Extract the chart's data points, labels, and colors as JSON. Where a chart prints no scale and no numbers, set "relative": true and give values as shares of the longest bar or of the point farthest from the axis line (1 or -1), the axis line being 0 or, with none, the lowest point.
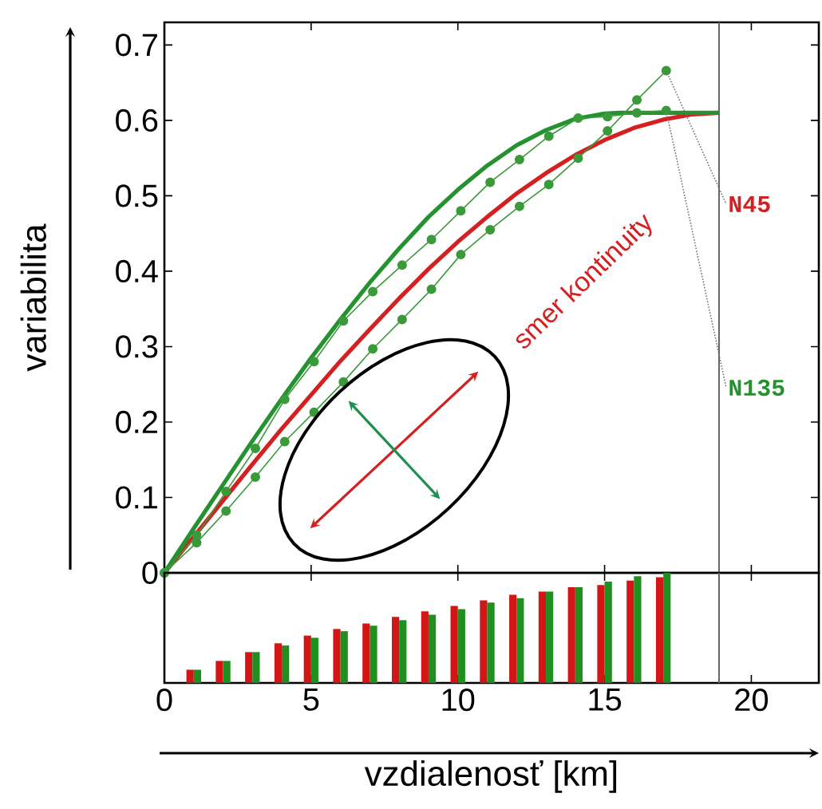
{
  "chart_data": [
    {
      "type": "line",
      "ylabel": "variabilita",
      "xlim": [
        0,
        22.3
      ],
      "ylim": [
        0,
        0.73
      ],
      "xticks": [
        0,
        5,
        10,
        15,
        20
      ],
      "yticks": [
        0,
        0.1,
        0.2,
        0.3,
        0.4,
        0.5,
        0.6,
        0.7
      ],
      "tick_labels": "y",
      "ref_lines": [
        {
          "axis": "x",
          "value": 18.9
        }
      ],
      "annotations": [
        "smer kontinuity"
      ],
      "series": [
        {
          "name": "N45",
          "color": "#d42020",
          "marker": "none",
          "x": [
            0,
            1,
            2,
            3,
            4,
            5,
            6,
            7,
            8,
            9,
            10,
            11,
            12,
            13,
            14,
            15,
            16,
            17,
            18,
            18.9
          ],
          "values": [
            0,
            0.048,
            0.096,
            0.144,
            0.191,
            0.236,
            0.281,
            0.323,
            0.364,
            0.403,
            0.439,
            0.472,
            0.503,
            0.53,
            0.554,
            0.574,
            0.59,
            0.601,
            0.608,
            0.61
          ]
        },
        {
          "name": "N135",
          "color": "#23922f",
          "marker": "none",
          "x": [
            0,
            1,
            2,
            3,
            4,
            5,
            6,
            7,
            8,
            9,
            10,
            11,
            12,
            13,
            14,
            15,
            15.5,
            18.9
          ],
          "values": [
            0,
            0.059,
            0.117,
            0.175,
            0.231,
            0.285,
            0.336,
            0.385,
            0.43,
            0.472,
            0.508,
            0.54,
            0.567,
            0.587,
            0.602,
            0.609,
            0.61,
            0.61
          ]
        },
        {
          "color": "#3a9a3a",
          "marker": "circle",
          "x": [
            0,
            1.1,
            2.1,
            3.1,
            4.1,
            5.1,
            6.1,
            7.1,
            8.1,
            9.1,
            10.1,
            11.1,
            12.1,
            13.1,
            14.1,
            15.1,
            16.1,
            17.1
          ],
          "values": [
            0,
            0.04,
            0.082,
            0.127,
            0.174,
            0.213,
            0.253,
            0.297,
            0.336,
            0.376,
            0.422,
            0.455,
            0.486,
            0.515,
            0.55,
            0.586,
            0.627,
            0.666
          ]
        },
        {
          "color": "#3a9a3a",
          "marker": "circle",
          "x": [
            0,
            1.1,
            2.1,
            3.1,
            4.1,
            5.1,
            6.1,
            7.1,
            8.1,
            9.1,
            10.1,
            11.1,
            12.1,
            13.1,
            14.1,
            15.1,
            16.1,
            17.1
          ],
          "values": [
            0,
            0.05,
            0.108,
            0.165,
            0.23,
            0.28,
            0.334,
            0.373,
            0.408,
            0.442,
            0.48,
            0.518,
            0.548,
            0.579,
            0.603,
            0.605,
            0.61,
            0.613
          ]
        }
      ]
    },
    {
      "type": "bar",
      "relative": true,
      "xlabel": "vzdialenosť [km]",
      "xlim": [
        0,
        22.3
      ],
      "xticks": [
        0,
        5,
        10,
        15,
        20
      ],
      "tick_labels": "x",
      "ref_lines": [
        {
          "axis": "x",
          "value": 18.9
        }
      ],
      "x": [
        1,
        2,
        3,
        4,
        5,
        6,
        7,
        8,
        9,
        10,
        11,
        12,
        13,
        14,
        15,
        16,
        17
      ],
      "series": [
        {
          "color": "#d41515",
          "values": [
            0.12,
            0.2,
            0.28,
            0.36,
            0.43,
            0.49,
            0.54,
            0.6,
            0.65,
            0.7,
            0.75,
            0.8,
            0.83,
            0.87,
            0.89,
            0.93,
            0.96
          ]
        },
        {
          "color": "#1f8f1f",
          "values": [
            0.12,
            0.2,
            0.28,
            0.34,
            0.41,
            0.47,
            0.52,
            0.57,
            0.62,
            0.67,
            0.73,
            0.77,
            0.83,
            0.87,
            0.92,
            0.97,
            1
          ]
        }
      ]
    }
  ]
}
